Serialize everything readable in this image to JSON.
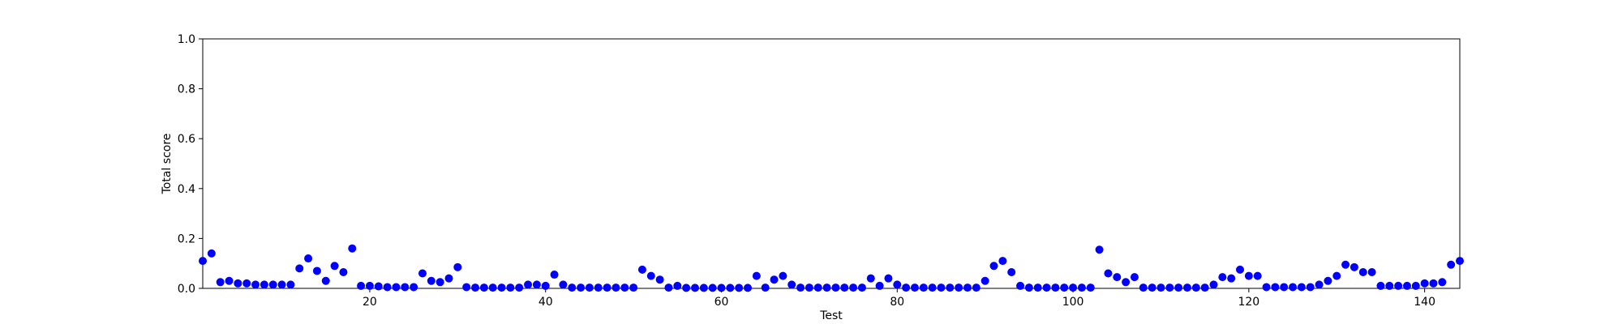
{
  "chart_data": {
    "type": "scatter",
    "xlabel": "Test",
    "ylabel": "Total score",
    "x": [
      1,
      2,
      3,
      4,
      5,
      6,
      7,
      8,
      9,
      10,
      11,
      12,
      13,
      14,
      15,
      16,
      17,
      18,
      19,
      20,
      21,
      22,
      23,
      24,
      25,
      26,
      27,
      28,
      29,
      30,
      31,
      32,
      33,
      34,
      35,
      36,
      37,
      38,
      39,
      40,
      41,
      42,
      43,
      44,
      45,
      46,
      47,
      48,
      49,
      50,
      51,
      52,
      53,
      54,
      55,
      56,
      57,
      58,
      59,
      60,
      61,
      62,
      63,
      64,
      65,
      66,
      67,
      68,
      69,
      70,
      71,
      72,
      73,
      74,
      75,
      76,
      77,
      78,
      79,
      80,
      81,
      82,
      83,
      84,
      85,
      86,
      87,
      88,
      89,
      90,
      91,
      92,
      93,
      94,
      95,
      96,
      97,
      98,
      99,
      100,
      101,
      102,
      103,
      104,
      105,
      106,
      107,
      108,
      109,
      110,
      111,
      112,
      113,
      114,
      115,
      116,
      117,
      118,
      119,
      120,
      121,
      122,
      123,
      124,
      125,
      126,
      127,
      128,
      129,
      130,
      131,
      132,
      133,
      134,
      135,
      136,
      137,
      138,
      139,
      140,
      141,
      142,
      143,
      144
    ],
    "values": [
      0.11,
      0.14,
      0.025,
      0.03,
      0.02,
      0.02,
      0.015,
      0.015,
      0.015,
      0.015,
      0.015,
      0.08,
      0.12,
      0.07,
      0.03,
      0.09,
      0.065,
      0.16,
      0.01,
      0.01,
      0.008,
      0.005,
      0.005,
      0.005,
      0.005,
      0.06,
      0.03,
      0.025,
      0.04,
      0.085,
      0.005,
      0.003,
      0.003,
      0.003,
      0.003,
      0.003,
      0.003,
      0.015,
      0.015,
      0.01,
      0.055,
      0.015,
      0.003,
      0.003,
      0.003,
      0.003,
      0.003,
      0.003,
      0.003,
      0.003,
      0.075,
      0.05,
      0.035,
      0.003,
      0.01,
      0.002,
      0.002,
      0.002,
      0.002,
      0.002,
      0.002,
      0.002,
      0.002,
      0.05,
      0.003,
      0.035,
      0.05,
      0.015,
      0.003,
      0.003,
      0.003,
      0.003,
      0.003,
      0.003,
      0.003,
      0.003,
      0.04,
      0.01,
      0.04,
      0.015,
      0.003,
      0.003,
      0.003,
      0.003,
      0.003,
      0.003,
      0.003,
      0.003,
      0.003,
      0.03,
      0.09,
      0.11,
      0.065,
      0.01,
      0.003,
      0.003,
      0.003,
      0.003,
      0.003,
      0.003,
      0.003,
      0.003,
      0.155,
      0.06,
      0.045,
      0.025,
      0.045,
      0.003,
      0.003,
      0.003,
      0.003,
      0.003,
      0.003,
      0.003,
      0.003,
      0.015,
      0.045,
      0.04,
      0.075,
      0.05,
      0.05,
      0.005,
      0.005,
      0.005,
      0.005,
      0.005,
      0.005,
      0.015,
      0.03,
      0.05,
      0.095,
      0.085,
      0.065,
      0.065,
      0.01,
      0.01,
      0.01,
      0.01,
      0.01,
      0.02,
      0.02,
      0.025,
      0.095,
      0.11
    ],
    "color": "#0000ff",
    "xlim": [
      1,
      144
    ],
    "xticks": [
      20,
      40,
      60,
      80,
      100,
      120,
      140
    ],
    "ylim": [
      0,
      1
    ],
    "yticks": [
      {
        "value": 0,
        "label": "0.0"
      },
      0.2,
      0.4,
      0.6,
      0.8,
      {
        "value": 1,
        "label": "1.0"
      }
    ],
    "grid": false
  }
}
